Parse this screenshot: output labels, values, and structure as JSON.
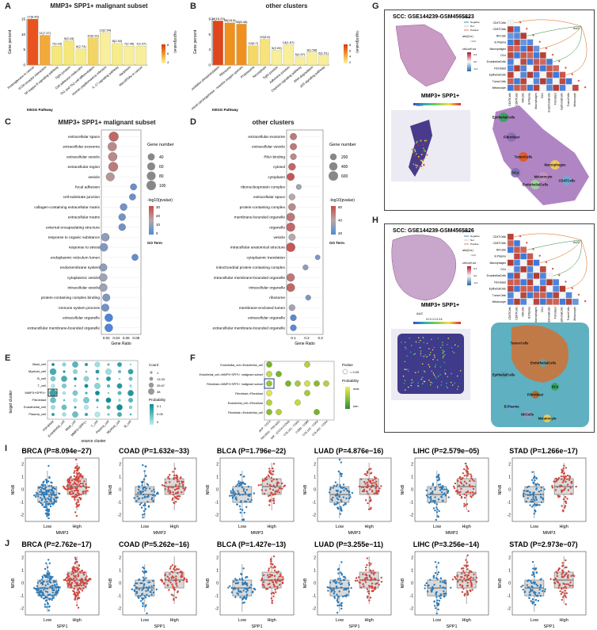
{
  "panel_letters": [
    "A",
    "B",
    "C",
    "D",
    "E",
    "F",
    "G",
    "H",
    "I",
    "J"
  ],
  "panelA": {
    "title": "MMP3+ SPP1+ malignant subset",
    "xlabel": "KEGG Pathway",
    "ylabel": "Gene percent",
    "legend_title": "-log10(pvalue)",
    "legend_ticks": [
      "8",
      "6",
      "4"
    ],
    "yticks": [
      "0",
      "5",
      "10",
      "15"
    ]
  },
  "panelB": {
    "title": "other clusters",
    "xlabel": "KEGG Pathway",
    "ylabel": "Gene percent",
    "legend_title": "-log10(pvalue)",
    "legend_ticks": [
      "8",
      "6",
      "4",
      "2"
    ],
    "yticks": [
      "0",
      "3",
      "6",
      "9"
    ]
  },
  "panelC": {
    "title": "MMP3+ SPP1+ malignant subset",
    "xlabel": "Gene Ratio",
    "size_title": "Gene number",
    "size_ticks": [
      "40",
      "60",
      "80",
      "100"
    ],
    "color_title": "-log10(pvalue)",
    "color_ticks": [
      "30",
      "20",
      "10",
      "0"
    ],
    "go_title": "GO Term",
    "xticks": [
      "0.02",
      "0.04",
      "0.06",
      "0.08"
    ]
  },
  "panelD": {
    "title": "other clusters",
    "xlabel": "Gene Ratio",
    "size_title": "Gene number",
    "size_ticks": [
      "200",
      "400",
      "600"
    ],
    "color_title": "-log10(pvalue)",
    "color_ticks": [
      "60",
      "40",
      "20"
    ],
    "go_title": "GO Term",
    "xticks": [
      "0.1",
      "0.2",
      "0.3"
    ]
  },
  "panelE": {
    "ylabel": "target cluster",
    "xlabel": "source cluster",
    "count_title": "Count",
    "count_ticks": [
      "1",
      "13.33",
      "25.67",
      "38"
    ],
    "prob_title": "Probability",
    "prob_ticks": [
      "0.1",
      "0.05",
      "0"
    ]
  },
  "panelF": {
    "legend_pvalue": "Pvalue",
    "legend_p": "< 0.05",
    "legend_prob": "Probability",
    "legend_max": "max",
    "legend_min": "min"
  },
  "panelG": {
    "title": "SCC: GSE144239-GSM4565823",
    "sub": "MMP3+ SPP1+",
    "auc": "AUC",
    "auc_ticks": "0.0 0.1 0.2 0.3 0.4 0.5",
    "legend": [
      "pvalue",
      "Negative",
      "Not",
      "Positive",
      "abs(Cor)",
      "< 0.2",
      "cell-cell cor"
    ],
    "corr_ticks": [
      "0.4",
      "0.0",
      "-0.4"
    ],
    "region_labels": [
      "EpithelialCells",
      "Fibroblast",
      "TumorCells",
      "Melanocyte",
      "Macrophages",
      "EndothelialCells",
      "CD4TCells",
      "DCs"
    ]
  },
  "panelH": {
    "title": "SCC: GSE144239-GSM4565826",
    "sub": "MMP3+ SPP1+",
    "auc": "AUC",
    "auc_ticks": "0.0 0.2 0.4 0.6",
    "legend": [
      "pvalue",
      "Negative",
      "Not",
      "Positive",
      "abs(Cor)",
      "< 0.2",
      "cell-cell cor"
    ],
    "corr_ticks": [
      "0.4",
      "0.0",
      "-0.4"
    ],
    "region_labels": [
      "TumorCells",
      "EndothelialCells",
      "DCs",
      "Fibroblast",
      "B.Plasma",
      "NKCells",
      "Melanocyte",
      "EpithelialCells"
    ]
  },
  "celltypes": [
    "CD4TCells",
    "CD8TCells",
    "NKCells",
    "B.Plasma",
    "Macrophages",
    "DCs",
    "EndothelialCells",
    "Fibroblast",
    "EpithelialCells",
    "TumorCells",
    "Melanocyte"
  ],
  "panelI": {
    "group_label": "MMP3",
    "ylabel": "NFkB",
    "plots": [
      {
        "name": "BRCA",
        "p": "8.094e−27"
      },
      {
        "name": "COAD",
        "p": "1.632e−33"
      },
      {
        "name": "BLCA",
        "p": "1.796e−22"
      },
      {
        "name": "LUAD",
        "p": "4.876e−16"
      },
      {
        "name": "LIHC",
        "p": "2.579e−05"
      },
      {
        "name": "STAD",
        "p": "1.266e−17"
      }
    ]
  },
  "panelJ": {
    "group_label": "SPP1",
    "ylabel": "NFkB",
    "plots": [
      {
        "name": "BRCA",
        "p": "2.762e−17"
      },
      {
        "name": "COAD",
        "p": "5.262e−16"
      },
      {
        "name": "BLCA",
        "p": "1.427e−13"
      },
      {
        "name": "LUAD",
        "p": "3.255e−11"
      },
      {
        "name": "LIHC",
        "p": "3.256e−14"
      },
      {
        "name": "STAD",
        "p": "2.973e−07"
      }
    ]
  },
  "box_groups": [
    "Low",
    "High"
  ],
  "box_yticks": [
    "2",
    "1",
    "0",
    "-1",
    "-2"
  ],
  "chart_data": [
    {
      "type": "bar",
      "id": "A",
      "title": "MMP3+ SPP1+ malignant subset",
      "xlabel": "KEGG Pathway",
      "ylabel": "Gene percent",
      "categories": [
        "Proteoglycans in cancer",
        "ECM-receptor interaction",
        "NF-kappa B signaling pathway",
        "Tight junction",
        "Cell adhesion molecules",
        "Th1 and Th2 cell differentiation",
        "Human papillomavirus infection",
        "IL-17 signaling pathway",
        "Apoptosis",
        "MicroRNAs in cancer"
      ],
      "values": [
        17,
        11,
        7,
        9,
        6,
        10,
        12,
        8,
        7,
        7
      ],
      "labels": [
        "17(6.45)",
        "11(7.37)",
        "7(3.16)",
        "9(3.15)",
        "6(2.74)",
        "10(2.91)",
        "12(2.54)",
        "8(2.40)",
        "7(2.45)",
        "7(2.37)"
      ],
      "colors": [
        "#e8531f",
        "#f3a93a",
        "#f5e77a",
        "#f5e77a",
        "#f7ec8a",
        "#f3d564",
        "#f8ee9c",
        "#f7ec8a",
        "#f8ee9c",
        "#f8ee9c"
      ],
      "ylim": [
        0,
        17
      ]
    },
    {
      "type": "bar",
      "id": "B",
      "title": "other clusters",
      "xlabel": "KEGG Pathway",
      "ylabel": "Gene percent",
      "categories": [
        "Oxidative phosphorylation",
        "Ribosome",
        "Chemical carcinogenesis - reactive oxygen species",
        "Proteasome",
        "Necroptosis",
        "Tight junction",
        "Adherens junction",
        "Oxytocin signaling pathway",
        "RNA degradation",
        "p53 signaling pathway"
      ],
      "values": [
        9.6,
        9.2,
        8.9,
        4.2,
        5.6,
        3.2,
        4.4,
        1.8,
        2.8,
        2.1
      ],
      "labels": [
        "38(16.29)",
        "36(18.5)",
        "35(8.48)",
        "12(5.7)",
        "20(3.6)",
        "9(2.03)",
        "13(1.67)",
        "5(1.57)",
        "8(1.58)",
        "6(1.51)"
      ],
      "colors": [
        "#e0451b",
        "#f0901f",
        "#f0901f",
        "#f6d865",
        "#f7e37c",
        "#f8ee9c",
        "#f8ee9c",
        "#f8ee9c",
        "#f8ee9c",
        "#f8ee9c"
      ],
      "ylim": [
        0,
        10
      ]
    },
    {
      "type": "scatter",
      "id": "C",
      "xlabel": "Gene Ratio",
      "xlim": [
        0.01,
        0.09
      ],
      "terms": [
        "extracellular space",
        "extracellular exosome",
        "extracellular vesicle",
        "extracellular region",
        "vesicle",
        "focal adhesion",
        "cell-substrate junction",
        "collagen-containing extracellular matrix",
        "extracellular matrix",
        "external encapsulating structure",
        "response to organic substance",
        "response to stress",
        "endoplasmic reticulum lumen",
        "endomembrane system",
        "cytoplasmic vesicle",
        "intracellular vesicle",
        "protein-containing complex binding",
        "immune system process",
        "extracellular organelle",
        "extracellular membrane-bounded organelle"
      ],
      "x": [
        0.035,
        0.032,
        0.033,
        0.034,
        0.028,
        0.075,
        0.073,
        0.055,
        0.052,
        0.052,
        0.018,
        0.015,
        0.078,
        0.014,
        0.014,
        0.014,
        0.02,
        0.018,
        0.025,
        0.025
      ],
      "size": [
        100,
        80,
        80,
        95,
        70,
        30,
        30,
        40,
        40,
        40,
        60,
        60,
        30,
        50,
        55,
        55,
        50,
        50,
        60,
        60
      ],
      "pvalue": [
        25,
        20,
        20,
        22,
        18,
        5,
        5,
        6,
        6,
        6,
        10,
        8,
        4,
        10,
        12,
        12,
        8,
        6,
        1,
        1
      ]
    },
    {
      "type": "scatter",
      "id": "D",
      "xlabel": "Gene Ratio",
      "xlim": [
        0.05,
        0.32
      ],
      "terms": [
        "extracellular exosome",
        "extracellular vesicle",
        "RNA binding",
        "cytosol",
        "cytoplasm",
        "ribonucleoprotein complex",
        "extracellular space",
        "protein-containing complex",
        "membrane-bounded organelle",
        "organelle",
        "vesicle",
        "intracellular anatomical structure",
        "cytoplasmic translation",
        "mitochondrial protein-containing complex",
        "intracellular membrane-bounded organelle",
        "intracellular organelle",
        "ribosome",
        "membrane-enclosed lumen",
        "extracellular organelle",
        "extracellular membrane-bounded organelle"
      ],
      "x": [
        0.1,
        0.1,
        0.1,
        0.09,
        0.08,
        0.14,
        0.09,
        0.09,
        0.08,
        0.08,
        0.09,
        0.08,
        0.28,
        0.19,
        0.08,
        0.08,
        0.21,
        0.09,
        0.1,
        0.1
      ],
      "size": [
        200,
        200,
        150,
        250,
        300,
        80,
        150,
        250,
        400,
        450,
        200,
        500,
        60,
        90,
        350,
        400,
        80,
        150,
        150,
        150
      ],
      "pvalue": [
        45,
        45,
        40,
        50,
        55,
        25,
        30,
        40,
        45,
        50,
        30,
        55,
        15,
        20,
        45,
        50,
        15,
        25,
        5,
        5
      ]
    }
  ]
}
